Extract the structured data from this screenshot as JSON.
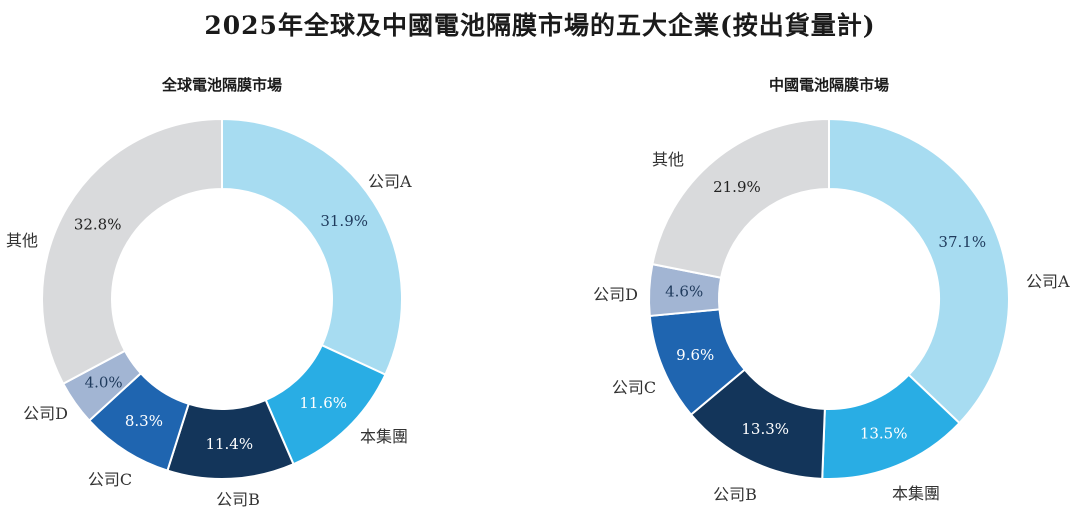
{
  "title": "2025年全球及中國電池隔膜市場的五大企業(按出貨量計)",
  "chart_data": [
    {
      "type": "pie",
      "donut": true,
      "title": "全球電池隔膜市場",
      "categories": [
        "公司A",
        "本集團",
        "公司B",
        "公司C",
        "公司D",
        "其他"
      ],
      "values": [
        31.9,
        11.6,
        11.4,
        8.3,
        4.0,
        32.8
      ],
      "labels": [
        "31.9%",
        "11.6%",
        "11.4%",
        "8.3%",
        "4.0%",
        "32.8%"
      ],
      "colors": [
        "#a7dcf1",
        "#29ade4",
        "#13355a",
        "#1f65b0",
        "#a2b5d3",
        "#d9dadc"
      ]
    },
    {
      "type": "pie",
      "donut": true,
      "title": "中國電池隔膜市場",
      "categories": [
        "公司A",
        "本集團",
        "公司B",
        "公司C",
        "公司D",
        "其他"
      ],
      "values": [
        37.1,
        13.5,
        13.3,
        9.6,
        4.6,
        21.9
      ],
      "labels": [
        "37.1%",
        "13.5%",
        "13.3%",
        "9.6%",
        "4.6%",
        "21.9%"
      ],
      "colors": [
        "#a7dcf1",
        "#29ade4",
        "#13355a",
        "#1f65b0",
        "#a2b5d3",
        "#d9dadc"
      ]
    }
  ]
}
